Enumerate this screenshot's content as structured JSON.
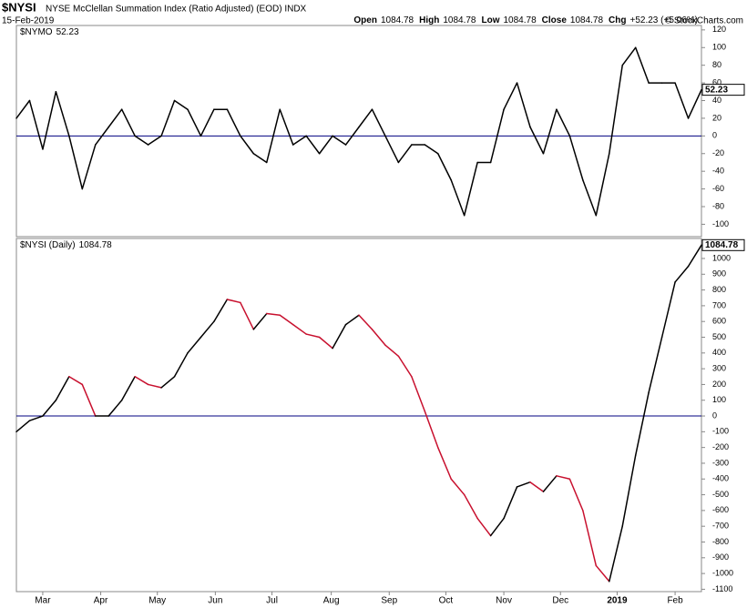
{
  "header": {
    "symbol": "$NYSI",
    "name": "NYSE McClellan Summation Index (Ratio Adjusted) (EOD) INDX",
    "date": "15-Feb-2019",
    "quote": [
      {
        "label": "Open",
        "value": 1084.78
      },
      {
        "label": "High",
        "value": 1084.78
      },
      {
        "label": "Low",
        "value": 1084.78
      },
      {
        "label": "Close",
        "value": 1084.78
      },
      {
        "label": "Chg",
        "value": "+52.23 (+5.06%)"
      }
    ],
    "copyright": "© StockCharts.com"
  },
  "chart_data": [
    {
      "type": "line",
      "series": [
        {
          "name": "$NYMO",
          "color": "#000000",
          "down_color": "#000000",
          "values": [
            20,
            40,
            -15,
            50,
            0,
            -60,
            -10,
            10,
            30,
            0,
            -10,
            0,
            40,
            30,
            0,
            30,
            30,
            0,
            -20,
            -30,
            30,
            -10,
            0,
            -20,
            0,
            -10,
            10,
            30,
            0,
            -30,
            -10,
            -10,
            -20,
            -50,
            -90,
            -30,
            -30,
            30,
            60,
            10,
            -20,
            30,
            0,
            -50,
            -90,
            -20,
            80,
            100,
            60,
            60,
            60,
            20,
            52.23
          ]
        }
      ],
      "xlim": [
        0,
        52
      ],
      "ylim": [
        -114,
        125
      ],
      "yticks": [
        -100,
        -80,
        -60,
        -40,
        -20,
        0,
        20,
        40,
        60,
        80,
        100,
        120
      ],
      "zero_line_color": "#000080"
    },
    {
      "type": "line",
      "series": [
        {
          "name": "$NYSI (Daily)",
          "color": "#000000",
          "down_color": "#c8102e",
          "values": [
            -100,
            -30,
            0,
            100,
            250,
            200,
            0,
            0,
            100,
            250,
            200,
            180,
            250,
            400,
            500,
            600,
            740,
            720,
            550,
            650,
            640,
            580,
            520,
            500,
            430,
            580,
            640,
            550,
            450,
            380,
            250,
            30,
            -200,
            -400,
            -500,
            -650,
            -760,
            -650,
            -450,
            -420,
            -480,
            -380,
            -400,
            -600,
            -950,
            -1050,
            -700,
            -250,
            150,
            500,
            850,
            950,
            1084.78
          ]
        }
      ],
      "xlim": [
        0,
        52
      ],
      "ylim": [
        -1115,
        1127
      ],
      "yticks": [
        -1100,
        -1000,
        -900,
        -800,
        -700,
        -600,
        -500,
        -400,
        -300,
        -200,
        -100,
        0,
        100,
        200,
        300,
        400,
        500,
        600,
        700,
        800,
        900,
        1000
      ],
      "zero_line_color": "#000080",
      "xticks": [
        {
          "value": 2,
          "label": "Mar"
        },
        {
          "value": 6.4,
          "label": "Apr"
        },
        {
          "value": 10.7,
          "label": "May"
        },
        {
          "value": 15.1,
          "label": "Jun"
        },
        {
          "value": 19.4,
          "label": "Jul"
        },
        {
          "value": 23.9,
          "label": "Aug"
        },
        {
          "value": 28.3,
          "label": "Sep"
        },
        {
          "value": 32.6,
          "label": "Oct"
        },
        {
          "value": 37,
          "label": "Nov"
        },
        {
          "value": 41.3,
          "label": "Dec"
        },
        {
          "value": 45.6,
          "label": "2019"
        },
        {
          "value": 50,
          "label": "Feb"
        }
      ]
    }
  ]
}
